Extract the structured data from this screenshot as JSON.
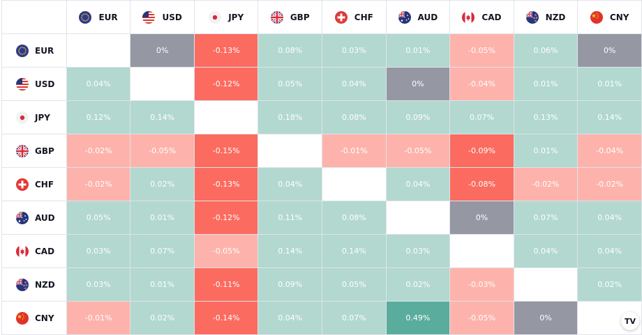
{
  "currencies": [
    "EUR",
    "USD",
    "JPY",
    "GBP",
    "CHF",
    "AUD",
    "CAD",
    "NZD",
    "CNY"
  ],
  "flag_icons": [
    "eu-flag-icon",
    "us-flag-icon",
    "japan-flag-icon",
    "uk-flag-icon",
    "switzerland-flag-icon",
    "australia-flag-icon",
    "canada-flag-icon",
    "new-zealand-flag-icon",
    "china-flag-icon"
  ],
  "colors": {
    "green": "#b2d8cf",
    "green_strong": "#5aac9c",
    "red_light": "#fdb3ab",
    "red": "#fb6b5f",
    "grey": "#9598a3"
  },
  "rows": [
    {
      "base": "EUR",
      "cells": [
        "",
        "0%",
        "-0.13%",
        "0.08%",
        "0.03%",
        "0.01%",
        "-0.05%",
        "0.06%",
        "0%"
      ]
    },
    {
      "base": "USD",
      "cells": [
        "0.04%",
        "",
        "-0.12%",
        "0.05%",
        "0.04%",
        "0%",
        "-0.04%",
        "0.01%",
        "0.01%"
      ]
    },
    {
      "base": "JPY",
      "cells": [
        "0.12%",
        "0.14%",
        "",
        "0.18%",
        "0.08%",
        "0.09%",
        "0.07%",
        "0.13%",
        "0.14%"
      ]
    },
    {
      "base": "GBP",
      "cells": [
        "-0.02%",
        "-0.05%",
        "-0.15%",
        "",
        "-0.01%",
        "-0.05%",
        "-0.09%",
        "0.01%",
        "-0.04%"
      ]
    },
    {
      "base": "CHF",
      "cells": [
        "-0.02%",
        "0.02%",
        "-0.13%",
        "0.04%",
        "",
        "0.04%",
        "-0.08%",
        "-0.02%",
        "-0.02%"
      ]
    },
    {
      "base": "AUD",
      "cells": [
        "0.05%",
        "0.01%",
        "-0.12%",
        "0.11%",
        "0.08%",
        "",
        "0%",
        "0.07%",
        "0.04%"
      ]
    },
    {
      "base": "CAD",
      "cells": [
        "0.03%",
        "0.07%",
        "-0.05%",
        "0.14%",
        "0.14%",
        "0.03%",
        "",
        "0.04%",
        "0.04%"
      ]
    },
    {
      "base": "NZD",
      "cells": [
        "0.03%",
        "0.01%",
        "-0.11%",
        "0.09%",
        "0.05%",
        "0.02%",
        "-0.03%",
        "",
        "0.02%"
      ]
    },
    {
      "base": "CNY",
      "cells": [
        "-0.01%",
        "0.02%",
        "-0.14%",
        "0.04%",
        "0.07%",
        "0.49%",
        "-0.05%",
        "0%",
        ""
      ]
    }
  ],
  "shades": [
    [
      "self",
      "grey",
      "red",
      "green",
      "green",
      "green",
      "red_light",
      "green",
      "grey"
    ],
    [
      "green",
      "self",
      "red",
      "green",
      "green",
      "grey",
      "red_light",
      "green",
      "green"
    ],
    [
      "green",
      "green",
      "self",
      "green",
      "green",
      "green",
      "green",
      "green",
      "green"
    ],
    [
      "red_light",
      "red_light",
      "red",
      "self",
      "red_light",
      "red_light",
      "red",
      "green",
      "red_light"
    ],
    [
      "red_light",
      "green",
      "red",
      "green",
      "self",
      "green",
      "red",
      "red_light",
      "red_light"
    ],
    [
      "green",
      "green",
      "red",
      "green",
      "green",
      "self",
      "grey",
      "green",
      "green"
    ],
    [
      "green",
      "green",
      "red_light",
      "green",
      "green",
      "green",
      "self",
      "green",
      "green"
    ],
    [
      "green",
      "green",
      "red",
      "green",
      "green",
      "green",
      "red_light",
      "self",
      "green"
    ],
    [
      "red_light",
      "green",
      "red",
      "green",
      "green",
      "green_strong",
      "red_light",
      "grey",
      "self"
    ]
  ],
  "logo": {
    "text": "TV",
    "icon": "tradingview-logo-icon"
  }
}
